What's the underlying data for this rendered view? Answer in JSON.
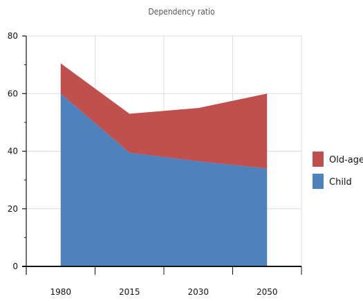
{
  "chart_data": {
    "type": "area",
    "title": "Dependency ratio",
    "xlabel": "",
    "ylabel": "",
    "categories": [
      "1980",
      "2015",
      "2030",
      "2050"
    ],
    "stacked": true,
    "series": [
      {
        "name": "Child",
        "values": [
          60,
          39.5,
          36.5,
          34
        ],
        "color": "#4F81BD"
      },
      {
        "name": "Old-age",
        "values": [
          10.5,
          13.5,
          18.5,
          26
        ],
        "color": "#C0504D"
      }
    ],
    "ylim": [
      0,
      80
    ],
    "yticks": [
      "0",
      "20",
      "40",
      "60",
      "80"
    ],
    "grid": true,
    "legend": "right"
  }
}
